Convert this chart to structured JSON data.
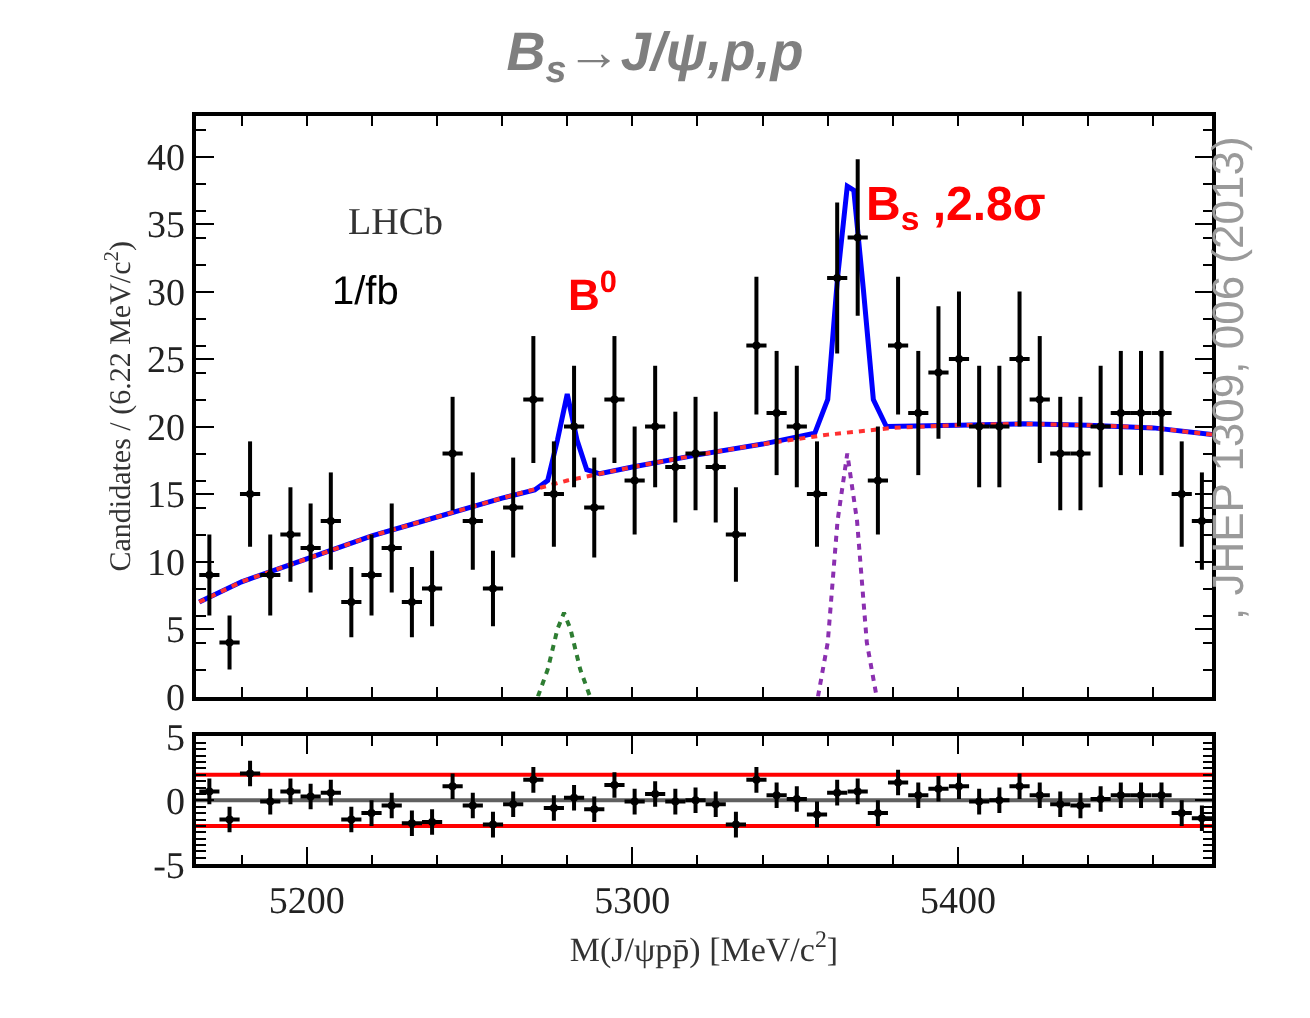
{
  "chart_data": [
    {
      "type": "scatter",
      "title": "B$_{s}$→J/ψ,p,p",
      "ylabel": "Candidates / (6.22 MeV/c$^{2}$)",
      "xlim": [
        5166,
        5478
      ],
      "xticks": [
        5200,
        5300,
        5400
      ],
      "ylim": [
        0,
        43
      ],
      "yticks": [
        0,
        5,
        10,
        15,
        20,
        25,
        30,
        35,
        40
      ],
      "tick_labels": "y",
      "annotations": [
        "LHCb",
        "1/fb",
        "B$^{0}$",
        "B$_{s}$ ,2.8σ",
        ", JHEP 1309, 006 (2013)"
      ],
      "x": [
        5170.1,
        5176.3,
        5182.6,
        5188.8,
        5195.0,
        5201.2,
        5207.4,
        5213.7,
        5219.9,
        5226.1,
        5232.3,
        5238.5,
        5244.8,
        5251.0,
        5257.2,
        5263.4,
        5269.6,
        5275.9,
        5282.1,
        5288.3,
        5294.5,
        5300.7,
        5307.0,
        5313.2,
        5319.4,
        5325.6,
        5331.8,
        5338.1,
        5344.3,
        5350.5,
        5356.7,
        5362.9,
        5369.2,
        5375.4,
        5381.6,
        5387.8,
        5394.0,
        5400.3,
        5406.5,
        5412.7,
        5418.9,
        5425.1,
        5431.4,
        5437.6,
        5443.8,
        5450.0,
        5456.2,
        5462.5,
        5468.7,
        5474.9
      ],
      "series": [
        {
          "color": "#000000",
          "marker": "circle",
          "values": [
            9,
            4,
            15,
            9,
            12,
            11,
            13,
            7,
            9,
            11,
            7,
            8,
            18,
            13,
            8,
            14,
            22,
            15,
            20,
            14,
            22,
            16,
            20,
            17,
            18,
            17,
            12,
            26,
            21,
            20,
            15,
            31,
            34,
            16,
            26,
            21,
            24,
            25,
            20,
            20,
            25,
            22,
            18,
            18,
            20,
            21,
            21,
            21,
            15,
            13
          ],
          "errors": [
            3,
            2,
            3.9,
            3,
            3.5,
            3.3,
            3.6,
            2.6,
            3,
            3.3,
            2.6,
            2.8,
            4.2,
            3.6,
            2.8,
            3.7,
            4.7,
            3.9,
            4.5,
            3.7,
            4.7,
            4,
            4.5,
            4.1,
            4.2,
            4.1,
            3.5,
            5.1,
            4.6,
            4.5,
            3.9,
            5.6,
            5.8,
            4,
            5.1,
            4.6,
            4.9,
            5,
            4.5,
            4.5,
            5,
            4.7,
            4.2,
            4.2,
            4.5,
            4.6,
            4.6,
            4.6,
            3.9,
            3.6
          ],
          "xerrors": [
            3.1,
            3.1,
            3.1,
            3.1,
            3.1,
            3.1,
            3.1,
            3.1,
            3.1,
            3.1,
            3.1,
            3.1,
            3.1,
            3.1,
            3.1,
            3.1,
            3.1,
            3.1,
            3.1,
            3.1,
            3.1,
            3.1,
            3.1,
            3.1,
            3.1,
            3.1,
            3.1,
            3.1,
            3.1,
            3.1,
            3.1,
            3.1,
            3.1,
            3.1,
            3.1,
            3.1,
            3.1,
            3.1,
            3.1,
            3.1,
            3.1,
            3.1,
            3.1,
            3.1,
            3.1,
            3.1,
            3.1,
            3.1,
            3.1,
            3.1
          ]
        },
        {
          "type": "line",
          "color": "#ff3030",
          "line_style": "dotted",
          "x": [
            5167,
            5180,
            5200,
            5220,
            5240,
            5260,
            5280,
            5300,
            5320,
            5340,
            5360,
            5380,
            5400,
            5420,
            5440,
            5460,
            5478
          ],
          "values": [
            7,
            8.5,
            10.2,
            11.9,
            13.3,
            14.7,
            16.0,
            17.0,
            17.9,
            18.7,
            19.4,
            19.9,
            20.1,
            20.2,
            20.1,
            19.9,
            19.4
          ]
        },
        {
          "type": "line",
          "color": "#0000ff",
          "line_style": "solid",
          "x": [
            5167,
            5180,
            5200,
            5220,
            5240,
            5260,
            5270,
            5274,
            5277,
            5280,
            5283,
            5286,
            5290,
            5300,
            5320,
            5340,
            5356,
            5360,
            5363,
            5366,
            5368,
            5371,
            5374,
            5378,
            5400,
            5420,
            5440,
            5460,
            5478
          ],
          "values": [
            7,
            8.5,
            10.2,
            11.9,
            13.3,
            14.7,
            15.3,
            16.0,
            19,
            22.4,
            19,
            16.8,
            16.5,
            17.0,
            17.9,
            18.7,
            19.5,
            22,
            31,
            37.8,
            37.5,
            30,
            22,
            20.0,
            20.1,
            20.2,
            20.1,
            19.9,
            19.4
          ]
        },
        {
          "type": "line",
          "color": "#2e7d32",
          "line_style": "dotted",
          "x": [
            5271,
            5274,
            5277,
            5279,
            5281,
            5284,
            5287
          ],
          "values": [
            0,
            2,
            5,
            6.2,
            5,
            2,
            0
          ]
        },
        {
          "type": "line",
          "color": "#8b2fb0",
          "line_style": "dotted",
          "x": [
            5357,
            5360,
            5363,
            5366,
            5369,
            5372,
            5375
          ],
          "values": [
            0,
            4,
            13,
            18,
            13,
            4,
            0
          ]
        }
      ]
    },
    {
      "type": "scatter",
      "xlabel": "M(J/ψpp̄) [MeV/c$^{2}$]",
      "xlim": [
        5166,
        5478
      ],
      "xticks": [
        5200,
        5300,
        5400
      ],
      "ylim": [
        -5,
        5
      ],
      "yticks": [
        -5,
        0,
        5
      ],
      "x": [
        5170.1,
        5176.3,
        5182.6,
        5188.8,
        5195.0,
        5201.2,
        5207.4,
        5213.7,
        5219.9,
        5226.1,
        5232.3,
        5238.5,
        5244.8,
        5251.0,
        5257.2,
        5263.4,
        5269.6,
        5275.9,
        5282.1,
        5288.3,
        5294.5,
        5300.7,
        5307.0,
        5313.2,
        5319.4,
        5325.6,
        5331.8,
        5338.1,
        5344.3,
        5350.5,
        5356.7,
        5362.9,
        5369.2,
        5375.4,
        5381.6,
        5387.8,
        5394.0,
        5400.3,
        5406.5,
        5412.7,
        5418.9,
        5425.1,
        5431.4,
        5437.6,
        5443.8,
        5450.0,
        5456.2,
        5462.5,
        5468.7,
        5474.9
      ],
      "ref_lines": [
        {
          "axis": "y",
          "value": 2,
          "color": "#ff0000"
        },
        {
          "axis": "y",
          "value": 0,
          "color": "#606060"
        },
        {
          "axis": "y",
          "value": -2,
          "color": "#ff0000"
        }
      ],
      "series": [
        {
          "color": "#000000",
          "marker": "circle",
          "values": [
            0.7,
            -1.5,
            2.1,
            -0.1,
            0.7,
            0.3,
            0.6,
            -1.5,
            -1.0,
            -0.4,
            -1.8,
            -1.7,
            1.1,
            -0.4,
            -1.9,
            -0.3,
            1.6,
            -0.6,
            0.2,
            -0.7,
            1.2,
            -0.1,
            0.5,
            -0.1,
            0.0,
            -0.3,
            -1.9,
            1.6,
            0.4,
            0.1,
            -1.1,
            0.6,
            0.7,
            -1.0,
            1.4,
            0.4,
            0.9,
            1.1,
            -0.1,
            0.0,
            1.1,
            0.4,
            -0.3,
            -0.4,
            0.1,
            0.4,
            0.4,
            0.4,
            -1.0,
            -1.4
          ],
          "errors": [
            1,
            1,
            1,
            1,
            1,
            1,
            1,
            1,
            1,
            1,
            1,
            1,
            1,
            1,
            1,
            1,
            1,
            1,
            1,
            1,
            1,
            1,
            1,
            1,
            1,
            1,
            1,
            1,
            1,
            1,
            1,
            1,
            1,
            1,
            1,
            1,
            1,
            1,
            1,
            1,
            1,
            1,
            1,
            1,
            1,
            1,
            1,
            1,
            1,
            1
          ],
          "xerrors": [
            3.1,
            3.1,
            3.1,
            3.1,
            3.1,
            3.1,
            3.1,
            3.1,
            3.1,
            3.1,
            3.1,
            3.1,
            3.1,
            3.1,
            3.1,
            3.1,
            3.1,
            3.1,
            3.1,
            3.1,
            3.1,
            3.1,
            3.1,
            3.1,
            3.1,
            3.1,
            3.1,
            3.1,
            3.1,
            3.1,
            3.1,
            3.1,
            3.1,
            3.1,
            3.1,
            3.1,
            3.1,
            3.1,
            3.1,
            3.1,
            3.1,
            3.1,
            3.1,
            3.1,
            3.1,
            3.1,
            3.1,
            3.1,
            3.1,
            3.1
          ]
        }
      ]
    }
  ]
}
